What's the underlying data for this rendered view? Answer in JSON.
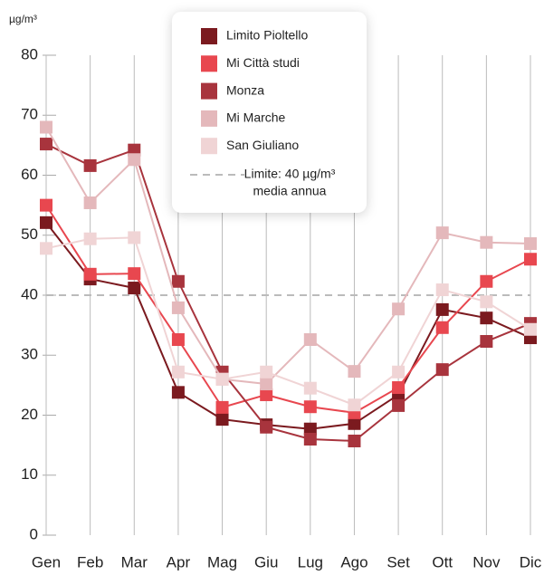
{
  "chart_data": {
    "type": "line",
    "y_unit": "µg/m³",
    "categories": [
      "Gen",
      "Feb",
      "Mar",
      "Apr",
      "Mag",
      "Giu",
      "Lug",
      "Ago",
      "Set",
      "Ott",
      "Nov",
      "Dic"
    ],
    "series": [
      {
        "name": "Limito Pioltello",
        "color": "#7b1a1f",
        "values": [
          52.1,
          42.7,
          41.2,
          23.8,
          19.3,
          18.4,
          17.7,
          18.6,
          23.4,
          37.6,
          36.2,
          32.9
        ]
      },
      {
        "name": "Mi Città studi",
        "color": "#e8474f",
        "values": [
          55,
          43.5,
          43.6,
          32.6,
          21.3,
          23.4,
          21.4,
          20.4,
          24.6,
          34.6,
          42.3,
          46
        ]
      },
      {
        "name": "Monza",
        "color": "#a8343d",
        "values": [
          65.2,
          61.6,
          64.2,
          42.3,
          27.2,
          18,
          16,
          15.7,
          21.6,
          27.6,
          32.3,
          35.3
        ]
      },
      {
        "name": "Mi Marche",
        "color": "#e4b8bb",
        "values": [
          68,
          55.4,
          62.6,
          37.9,
          26,
          25.2,
          32.6,
          27.3,
          37.7,
          50.4,
          48.8,
          48.6
        ]
      },
      {
        "name": "San Giuliano",
        "color": "#f0d4d5",
        "values": [
          47.8,
          49.4,
          49.6,
          27.2,
          26,
          27.2,
          24.5,
          21.7,
          27.2,
          40.9,
          38.9,
          34.3
        ]
      }
    ],
    "reference_line": {
      "value": 40,
      "color": "#bbbbbb",
      "label": [
        "Limite: 40 µg/m³",
        "media annua"
      ]
    },
    "ylim": [
      0,
      80
    ],
    "yticks": [
      0,
      10,
      20,
      30,
      40,
      50,
      60,
      70,
      80
    ],
    "grid": true
  }
}
